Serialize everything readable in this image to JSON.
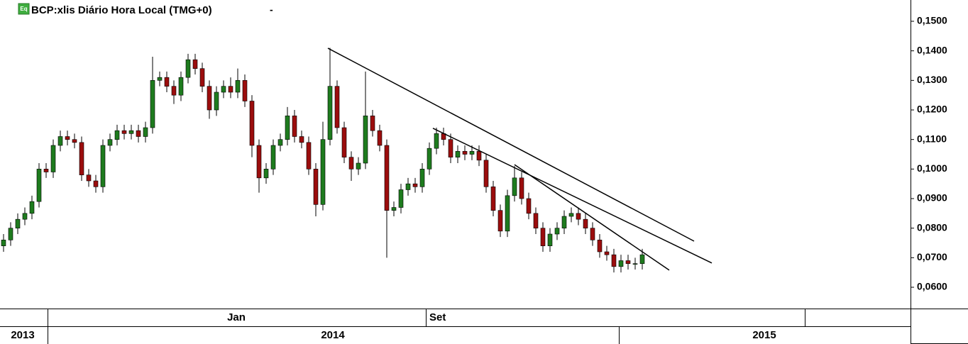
{
  "chart_data": {
    "type": "candlestick",
    "title": "BCP:xlis Diário Hora Local (TMG+0)",
    "icon": "Eq",
    "menu": "-",
    "up_color": "#1e7b1e",
    "down_color": "#9b0d0d",
    "xlim": [
      -0.5,
      127.8
    ],
    "ylim": [
      0.0528,
      0.1572
    ],
    "yticks": [
      {
        "value": 0.06,
        "label": "0,0600"
      },
      {
        "value": 0.07,
        "label": "0,0700"
      },
      {
        "value": 0.08,
        "label": "0,0800"
      },
      {
        "value": 0.09,
        "label": "0,0900"
      },
      {
        "value": 0.1,
        "label": "0,1000"
      },
      {
        "value": 0.11,
        "label": "0,1100"
      },
      {
        "value": 0.12,
        "label": "0,1200"
      },
      {
        "value": 0.13,
        "label": "0,1300"
      },
      {
        "value": 0.14,
        "label": "0,1400"
      },
      {
        "value": 0.15,
        "label": "0,1500"
      }
    ],
    "open": [
      0.074,
      0.076,
      0.08,
      0.083,
      0.085,
      0.089,
      0.1,
      0.099,
      0.108,
      0.111,
      0.11,
      0.109,
      0.098,
      0.096,
      0.094,
      0.108,
      0.11,
      0.113,
      0.112,
      0.113,
      0.111,
      0.114,
      0.13,
      0.131,
      0.128,
      0.125,
      0.131,
      0.137,
      0.134,
      0.128,
      0.12,
      0.126,
      0.128,
      0.126,
      0.13,
      0.123,
      0.108,
      0.097,
      0.1,
      0.108,
      0.11,
      0.118,
      0.111,
      0.109,
      0.1,
      0.088,
      0.11,
      0.128,
      0.114,
      0.104,
      0.1,
      0.102,
      0.118,
      0.113,
      0.108,
      0.086,
      0.087,
      0.093,
      0.095,
      0.094,
      0.1,
      0.107,
      0.112,
      0.11,
      0.104,
      0.106,
      0.105,
      0.106,
      0.103,
      0.094,
      0.086,
      0.079,
      0.091,
      0.097,
      0.09,
      0.085,
      0.08,
      0.074,
      0.078,
      0.08,
      0.084,
      0.085,
      0.083,
      0.08,
      0.076,
      0.072,
      0.071,
      0.067,
      0.069,
      0.068,
      0.068
    ],
    "high": [
      0.078,
      0.082,
      0.085,
      0.087,
      0.091,
      0.102,
      0.102,
      0.11,
      0.113,
      0.113,
      0.112,
      0.111,
      0.1,
      0.098,
      0.11,
      0.112,
      0.115,
      0.115,
      0.115,
      0.115,
      0.116,
      0.138,
      0.133,
      0.133,
      0.13,
      0.133,
      0.139,
      0.139,
      0.136,
      0.13,
      0.128,
      0.13,
      0.131,
      0.134,
      0.132,
      0.125,
      0.11,
      0.102,
      0.11,
      0.112,
      0.121,
      0.12,
      0.113,
      0.111,
      0.102,
      0.116,
      0.141,
      0.13,
      0.116,
      0.106,
      0.104,
      0.133,
      0.12,
      0.115,
      0.11,
      0.089,
      0.095,
      0.097,
      0.097,
      0.102,
      0.109,
      0.114,
      0.114,
      0.112,
      0.108,
      0.108,
      0.108,
      0.108,
      0.105,
      0.096,
      0.088,
      0.093,
      0.101,
      0.099,
      0.092,
      0.087,
      0.082,
      0.08,
      0.082,
      0.086,
      0.087,
      0.087,
      0.085,
      0.082,
      0.078,
      0.074,
      0.073,
      0.071,
      0.071,
      0.07,
      0.073
    ],
    "low": [
      0.072,
      0.074,
      0.078,
      0.081,
      0.083,
      0.087,
      0.097,
      0.097,
      0.106,
      0.108,
      0.107,
      0.096,
      0.094,
      0.092,
      0.092,
      0.106,
      0.108,
      0.11,
      0.11,
      0.109,
      0.109,
      0.112,
      0.128,
      0.126,
      0.122,
      0.123,
      0.129,
      0.132,
      0.126,
      0.117,
      0.118,
      0.124,
      0.124,
      0.124,
      0.121,
      0.104,
      0.092,
      0.095,
      0.098,
      0.106,
      0.108,
      0.109,
      0.107,
      0.098,
      0.084,
      0.086,
      0.108,
      0.112,
      0.102,
      0.096,
      0.098,
      0.1,
      0.111,
      0.106,
      0.07,
      0.084,
      0.085,
      0.091,
      0.092,
      0.092,
      0.098,
      0.105,
      0.108,
      0.102,
      0.102,
      0.103,
      0.103,
      0.101,
      0.092,
      0.084,
      0.077,
      0.077,
      0.089,
      0.088,
      0.083,
      0.078,
      0.072,
      0.072,
      0.076,
      0.078,
      0.082,
      0.081,
      0.078,
      0.074,
      0.07,
      0.069,
      0.065,
      0.065,
      0.066,
      0.066,
      0.066
    ],
    "close": [
      0.076,
      0.08,
      0.083,
      0.085,
      0.089,
      0.1,
      0.099,
      0.108,
      0.111,
      0.11,
      0.109,
      0.098,
      0.096,
      0.094,
      0.108,
      0.11,
      0.113,
      0.112,
      0.113,
      0.111,
      0.114,
      0.13,
      0.131,
      0.128,
      0.125,
      0.131,
      0.137,
      0.134,
      0.128,
      0.12,
      0.126,
      0.128,
      0.126,
      0.13,
      0.123,
      0.108,
      0.097,
      0.1,
      0.108,
      0.11,
      0.118,
      0.111,
      0.109,
      0.1,
      0.088,
      0.11,
      0.128,
      0.114,
      0.104,
      0.1,
      0.102,
      0.118,
      0.113,
      0.108,
      0.086,
      0.087,
      0.093,
      0.095,
      0.094,
      0.1,
      0.107,
      0.112,
      0.11,
      0.104,
      0.106,
      0.105,
      0.106,
      0.103,
      0.094,
      0.086,
      0.079,
      0.091,
      0.097,
      0.09,
      0.085,
      0.08,
      0.074,
      0.078,
      0.08,
      0.084,
      0.085,
      0.083,
      0.08,
      0.076,
      0.072,
      0.071,
      0.067,
      0.069,
      0.068,
      0.068,
      0.071
    ],
    "trendlines": [
      {
        "x": [
          45.7,
          97.3
        ],
        "y": [
          0.1409,
          0.0756
        ]
      },
      {
        "x": [
          60.5,
          99.8
        ],
        "y": [
          0.1138,
          0.0682
        ]
      },
      {
        "x": [
          72.0,
          93.8
        ],
        "y": [
          0.1015,
          0.0658
        ]
      }
    ],
    "time_axis": {
      "months": [
        "Jan",
        "Set"
      ],
      "years": [
        "2013",
        "2014",
        "2015"
      ]
    }
  }
}
